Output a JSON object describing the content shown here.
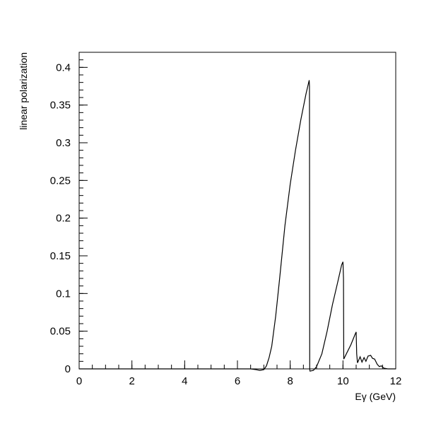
{
  "chart_data": {
    "type": "line",
    "title": "",
    "xlabel": "Eγ (GeV)",
    "ylabel": "linear polarization",
    "xlim": [
      0,
      12
    ],
    "ylim": [
      0,
      0.42
    ],
    "grid": false,
    "x_ticks": [
      0,
      2,
      4,
      6,
      8,
      10,
      12
    ],
    "x_tick_labels": [
      "0",
      "2",
      "4",
      "6",
      "8",
      "10",
      "12"
    ],
    "y_ticks": [
      0,
      0.05,
      0.1,
      0.15,
      0.2,
      0.25,
      0.3,
      0.35,
      0.4
    ],
    "y_tick_labels": [
      "0",
      "0.05",
      "0.1",
      "0.15",
      "0.2",
      "0.25",
      "0.3",
      "0.35",
      "0.4"
    ],
    "series": [
      {
        "color": "#000000",
        "points": [
          [
            0.0,
            0.0
          ],
          [
            6.5,
            0.0
          ],
          [
            6.7,
            -0.001
          ],
          [
            6.85,
            -0.002
          ],
          [
            7.0,
            -0.001
          ],
          [
            7.1,
            0.004
          ],
          [
            7.2,
            0.015
          ],
          [
            7.3,
            0.03
          ],
          [
            7.45,
            0.07
          ],
          [
            7.6,
            0.12
          ],
          [
            7.8,
            0.19
          ],
          [
            8.0,
            0.245
          ],
          [
            8.2,
            0.29
          ],
          [
            8.4,
            0.33
          ],
          [
            8.6,
            0.365
          ],
          [
            8.72,
            0.383
          ],
          [
            8.73,
            0.375
          ],
          [
            8.74,
            0.0
          ],
          [
            8.75,
            -0.003
          ],
          [
            8.88,
            -0.002
          ],
          [
            9.0,
            0.003
          ],
          [
            9.2,
            0.02
          ],
          [
            9.4,
            0.05
          ],
          [
            9.6,
            0.085
          ],
          [
            9.8,
            0.115
          ],
          [
            9.95,
            0.138
          ],
          [
            10.0,
            0.142
          ],
          [
            10.02,
            0.12
          ],
          [
            10.03,
            0.013
          ],
          [
            10.1,
            0.018
          ],
          [
            10.3,
            0.032
          ],
          [
            10.45,
            0.045
          ],
          [
            10.5,
            0.049
          ],
          [
            10.52,
            0.02
          ],
          [
            10.55,
            0.008
          ],
          [
            10.65,
            0.016
          ],
          [
            10.72,
            0.009
          ],
          [
            10.8,
            0.015
          ],
          [
            10.87,
            0.01
          ],
          [
            10.95,
            0.017
          ],
          [
            11.05,
            0.018
          ],
          [
            11.12,
            0.014
          ],
          [
            11.2,
            0.013
          ],
          [
            11.3,
            0.006
          ],
          [
            11.38,
            0.003
          ],
          [
            11.45,
            0.004
          ],
          [
            11.55,
            0.001
          ],
          [
            11.7,
            0.0
          ],
          [
            12.0,
            0.0
          ]
        ]
      }
    ]
  }
}
